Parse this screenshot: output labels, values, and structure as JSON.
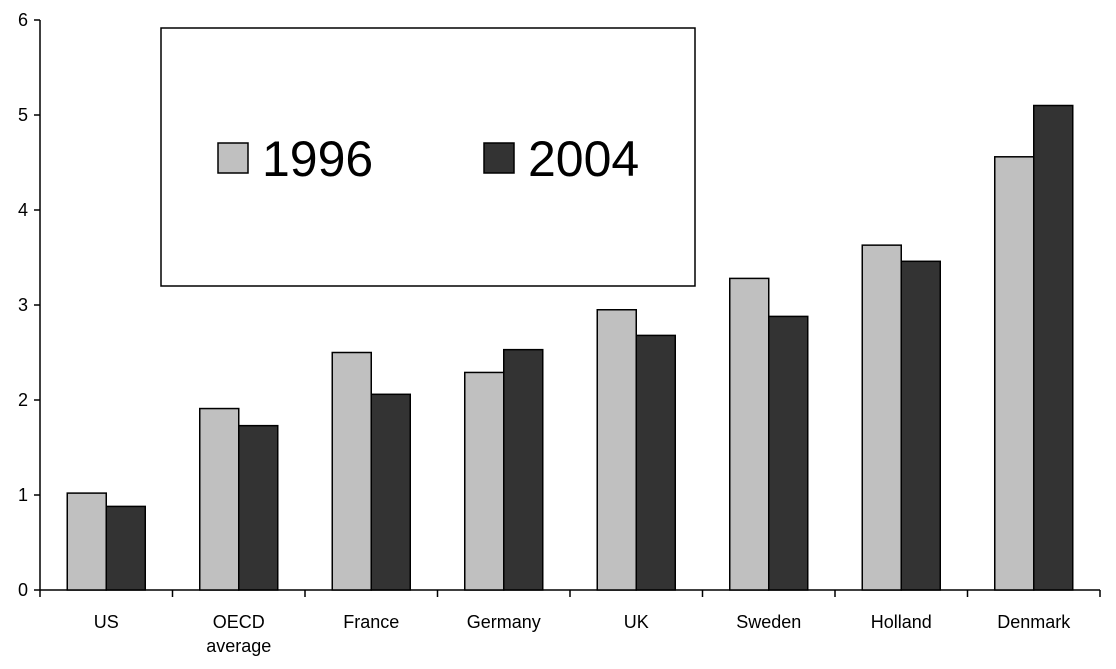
{
  "chart_data": {
    "type": "bar",
    "title": "",
    "xlabel": "",
    "ylabel": "",
    "categories": [
      "US",
      "OECD average",
      "France",
      "Germany",
      "UK",
      "Sweden",
      "Holland",
      "Denmark"
    ],
    "category_lines": [
      [
        "US"
      ],
      [
        "OECD",
        "average"
      ],
      [
        "France"
      ],
      [
        "Germany"
      ],
      [
        "UK"
      ],
      [
        "Sweden"
      ],
      [
        "Holland"
      ],
      [
        "Denmark"
      ]
    ],
    "series": [
      {
        "name": "1996",
        "color": "#c0c0c0",
        "values": [
          1.02,
          1.91,
          2.5,
          2.29,
          2.95,
          3.28,
          3.63,
          4.56
        ]
      },
      {
        "name": "2004",
        "color": "#333333",
        "values": [
          0.88,
          1.73,
          2.06,
          2.53,
          2.68,
          2.88,
          3.46,
          5.1
        ]
      }
    ],
    "ylim": [
      0,
      6
    ],
    "yticks": [
      "0",
      "1",
      "2",
      "3",
      "4",
      "5",
      "6"
    ],
    "grid": false,
    "legend_position": "top-left inside plot"
  }
}
